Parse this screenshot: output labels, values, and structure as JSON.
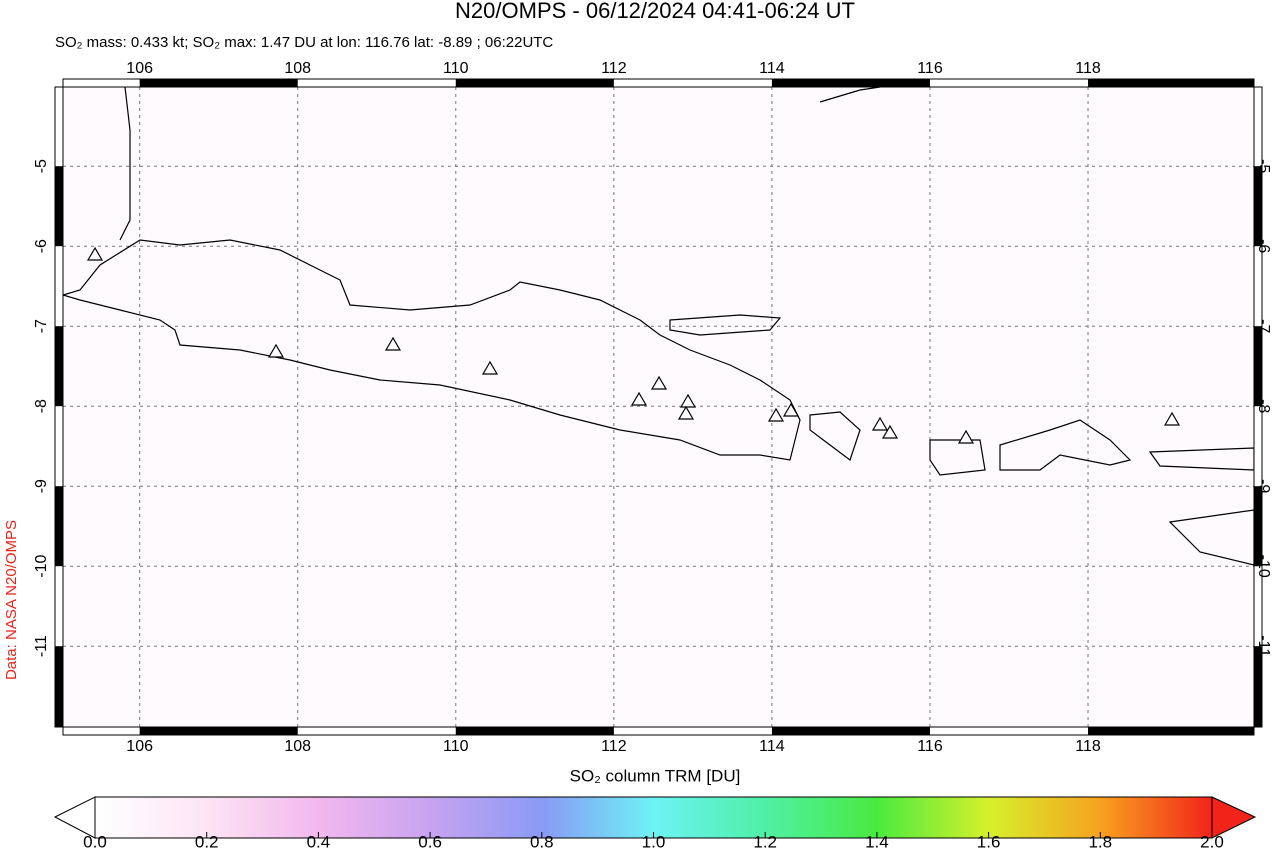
{
  "header": {
    "title": "N20/OMPS - 06/12/2024 04:41-06:24 UT",
    "subtitle": "SO₂ mass: 0.433 kt; SO₂ max: 1.47 DU at lon: 116.76 lat: -8.89 ; 06:22UTC"
  },
  "map": {
    "lonlim": [
      105.03,
      120.1
    ],
    "latlim": [
      -12.01,
      -4.01
    ],
    "lon_ticks": [
      106,
      108,
      110,
      112,
      114,
      116,
      118
    ],
    "lat_ticks": [
      -5,
      -6,
      -7,
      -8,
      -9,
      -10,
      -11
    ]
  },
  "colorbar": {
    "label": "SO₂ column TRM [DU]",
    "lim": [
      0,
      2
    ],
    "ticks": [
      {
        "value": 0,
        "label": "0.0"
      },
      {
        "value": 0.2,
        "label": "0.2"
      },
      {
        "value": 0.4,
        "label": "0.4"
      },
      {
        "value": 0.6,
        "label": "0.6"
      },
      {
        "value": 0.8,
        "label": "0.8"
      },
      {
        "value": 1,
        "label": "1.0"
      },
      {
        "value": 1.2,
        "label": "1.2"
      },
      {
        "value": 1.4,
        "label": "1.4"
      },
      {
        "value": 1.6,
        "label": "1.6"
      },
      {
        "value": 1.8,
        "label": "1.8"
      },
      {
        "value": 2,
        "label": "2.0"
      }
    ]
  },
  "credit": "Data: NASA N20/OMPS"
}
